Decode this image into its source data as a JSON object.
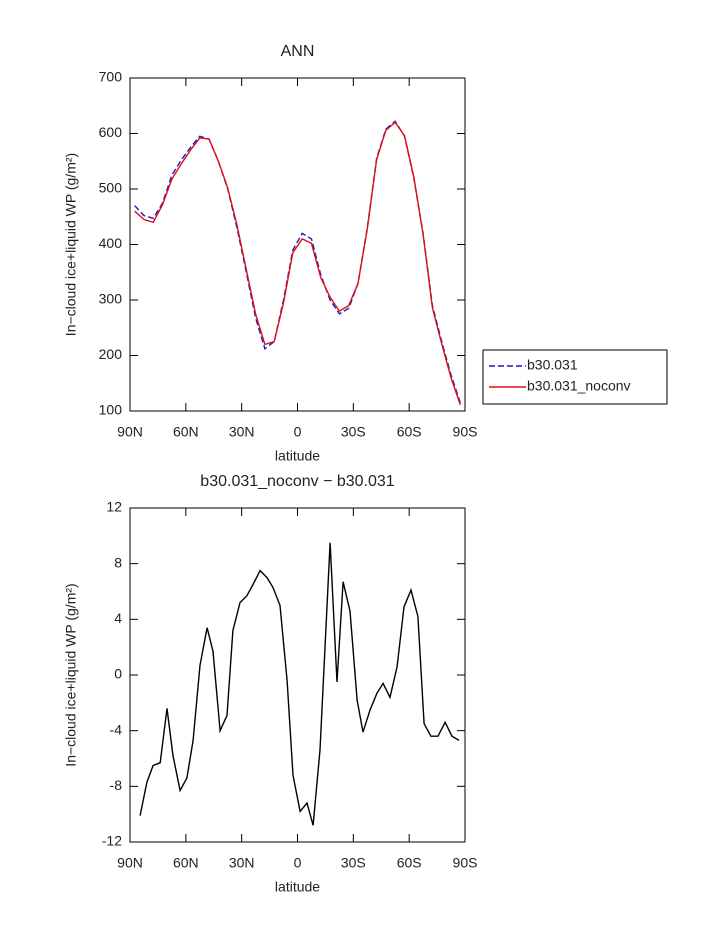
{
  "chart_data": [
    {
      "type": "line",
      "title": "ANN",
      "xlabel": "latitude",
      "ylabel": "In−cloud ice+liquid WP (g/m²)",
      "xlim": [
        90,
        -90
      ],
      "xticks": [
        {
          "value": 90,
          "label": "90N"
        },
        {
          "value": 60,
          "label": "60N"
        },
        {
          "value": 30,
          "label": "30N"
        },
        0,
        {
          "value": -30,
          "label": "30S"
        },
        {
          "value": -60,
          "label": "60S"
        },
        {
          "value": -90,
          "label": "90S"
        }
      ],
      "ylim": [
        100,
        700
      ],
      "yticks": [
        100,
        200,
        300,
        400,
        500,
        600,
        700
      ],
      "legend": "right",
      "x": [
        87.5,
        82.5,
        77.5,
        72.5,
        67.5,
        62.5,
        57.5,
        52.5,
        47.5,
        42.5,
        37.5,
        32.5,
        27.5,
        22.5,
        17.5,
        12.5,
        7.5,
        2.5,
        -2.5,
        -7.5,
        -12.5,
        -17.5,
        -22.5,
        -27.5,
        -32.5,
        -37.5,
        -42.5,
        -47.5,
        -52.5,
        -57.5,
        -62.5,
        -67.5,
        -72.5,
        -77.5,
        -82.5,
        -87.5
      ],
      "series": [
        {
          "name": "b30.031",
          "color": "#1a1acc",
          "linestyle": "dashed",
          "values": [
            470,
            452,
            447,
            475,
            525,
            552,
            575,
            595,
            590,
            550,
            500,
            430,
            350,
            268,
            212,
            225,
            300,
            390,
            420,
            410,
            345,
            300,
            275,
            285,
            330,
            430,
            555,
            608,
            622,
            595,
            520,
            420,
            290,
            225,
            165,
            115
          ]
        },
        {
          "name": "b30.031_noconv",
          "color": "#e01010",
          "linestyle": "solid",
          "values": [
            460,
            445,
            440,
            472,
            518,
            545,
            570,
            592,
            590,
            550,
            502,
            435,
            355,
            275,
            220,
            225,
            295,
            385,
            410,
            402,
            340,
            305,
            280,
            290,
            330,
            428,
            553,
            606,
            620,
            596,
            522,
            418,
            286,
            221,
            160,
            111
          ]
        }
      ]
    },
    {
      "type": "line",
      "title": "b30.031_noconv − b30.031",
      "xlabel": "latitude",
      "ylabel": "In−cloud ice+liquid WP (g/m²)",
      "xlim": [
        90,
        -90
      ],
      "xticks": [
        {
          "value": 90,
          "label": "90N"
        },
        {
          "value": 60,
          "label": "60N"
        },
        {
          "value": 30,
          "label": "30N"
        },
        0,
        {
          "value": -30,
          "label": "30S"
        },
        {
          "value": -60,
          "label": "60S"
        },
        {
          "value": -90,
          "label": "90S"
        }
      ],
      "ylim": [
        -12,
        12
      ],
      "yticks": [
        -12,
        -8,
        -4,
        0,
        4,
        8,
        12
      ],
      "color": "#000000",
      "x": [
        84.6,
        80.9,
        77.6,
        73.8,
        70.1,
        66.9,
        63.1,
        59.4,
        56.1,
        52.4,
        48.6,
        45.4,
        41.6,
        37.9,
        34.7,
        30.9,
        27.2,
        23.9,
        20.1,
        16.4,
        13.2,
        9.4,
        5.6,
        2.4,
        -1.4,
        -5.1,
        -8.4,
        -12.1,
        -17.5,
        -21.2,
        -24.5,
        -28.2,
        -32.0,
        -35.2,
        -39.0,
        -42.7,
        -46.0,
        -49.7,
        -53.5,
        -57.2,
        -61.0,
        -64.7,
        -68.0,
        -71.7,
        -75.5,
        -79.3,
        -83.0,
        -86.8
      ],
      "values": [
        -10.1,
        -7.7,
        -6.5,
        -6.3,
        -2.4,
        -5.8,
        -8.3,
        -7.4,
        -4.7,
        0.7,
        3.4,
        1.7,
        -4.0,
        -2.9,
        3.2,
        5.2,
        5.7,
        6.5,
        7.5,
        7.0,
        6.3,
        5.0,
        -0.4,
        -7.2,
        -9.8,
        -9.2,
        -10.8,
        -5.4,
        9.5,
        -0.5,
        6.7,
        4.6,
        -1.8,
        -4.1,
        -2.5,
        -1.3,
        -0.6,
        -1.6,
        0.6,
        4.9,
        6.1,
        4.2,
        -3.5,
        -4.4,
        -4.4,
        -3.4,
        -4.4,
        -4.7
      ]
    }
  ]
}
